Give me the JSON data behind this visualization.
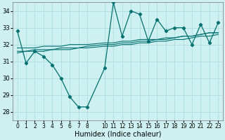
{
  "xlabel": "Humidex (Indice chaleur)",
  "ylabel": "",
  "background_color": "#cff0f0",
  "grid_color": "#aadddd",
  "line_color": "#007070",
  "xlim": [
    -0.5,
    23.5
  ],
  "ylim": [
    27.5,
    34.5
  ],
  "yticks": [
    28,
    29,
    30,
    31,
    32,
    33,
    34
  ],
  "xtick_labels": [
    "0",
    "1",
    "2",
    "3",
    "4",
    "5",
    "6",
    "7",
    "8",
    "10",
    "11",
    "12",
    "13",
    "14",
    "15",
    "16",
    "17",
    "18",
    "19",
    "20",
    "21",
    "22",
    "23"
  ],
  "xtick_positions": [
    0,
    1,
    2,
    3,
    4,
    5,
    6,
    7,
    8,
    10,
    11,
    12,
    13,
    14,
    15,
    16,
    17,
    18,
    19,
    20,
    21,
    22,
    23
  ],
  "series_volatile": {
    "x": [
      0,
      1,
      2,
      3,
      4,
      5,
      6,
      7,
      8,
      10,
      11,
      12,
      13,
      14,
      15,
      16,
      17,
      18,
      19,
      20,
      21,
      22,
      23
    ],
    "y": [
      32.8,
      30.9,
      31.6,
      31.3,
      30.8,
      30.0,
      28.9,
      28.3,
      28.3,
      30.6,
      34.5,
      32.5,
      34.0,
      33.8,
      32.2,
      33.5,
      32.8,
      33.0,
      33.0,
      32.0,
      33.2,
      32.1,
      33.3
    ]
  },
  "series_trend": [
    {
      "x": [
        0,
        1,
        2,
        3,
        4,
        5,
        6,
        7,
        8,
        10,
        11,
        12,
        13,
        14,
        15,
        16,
        17,
        18,
        19,
        20,
        21,
        22,
        23
      ],
      "y": [
        31.5,
        31.6,
        31.6,
        31.6,
        31.7,
        31.7,
        31.7,
        31.8,
        31.8,
        31.9,
        31.9,
        32.0,
        32.0,
        32.1,
        32.1,
        32.2,
        32.2,
        32.3,
        32.3,
        32.4,
        32.5,
        32.5,
        32.6
      ]
    },
    {
      "x": [
        0,
        1,
        2,
        3,
        4,
        5,
        6,
        7,
        8,
        10,
        11,
        12,
        13,
        14,
        15,
        16,
        17,
        18,
        19,
        20,
        21,
        22,
        23
      ],
      "y": [
        31.6,
        31.6,
        31.7,
        31.7,
        31.7,
        31.8,
        31.8,
        31.8,
        31.9,
        32.0,
        32.0,
        32.1,
        32.1,
        32.2,
        32.2,
        32.3,
        32.3,
        32.4,
        32.5,
        32.5,
        32.6,
        32.7,
        32.7
      ]
    },
    {
      "x": [
        0,
        1,
        2,
        3,
        4,
        5,
        6,
        7,
        8,
        10,
        11,
        12,
        13,
        14,
        15,
        16,
        17,
        18,
        19,
        20,
        21,
        22,
        23
      ],
      "y": [
        31.8,
        31.8,
        31.8,
        31.9,
        31.9,
        31.9,
        32.0,
        32.0,
        32.0,
        32.1,
        32.1,
        32.2,
        32.2,
        32.3,
        32.3,
        32.3,
        32.4,
        32.4,
        32.5,
        32.5,
        32.6,
        32.7,
        32.7
      ]
    }
  ]
}
